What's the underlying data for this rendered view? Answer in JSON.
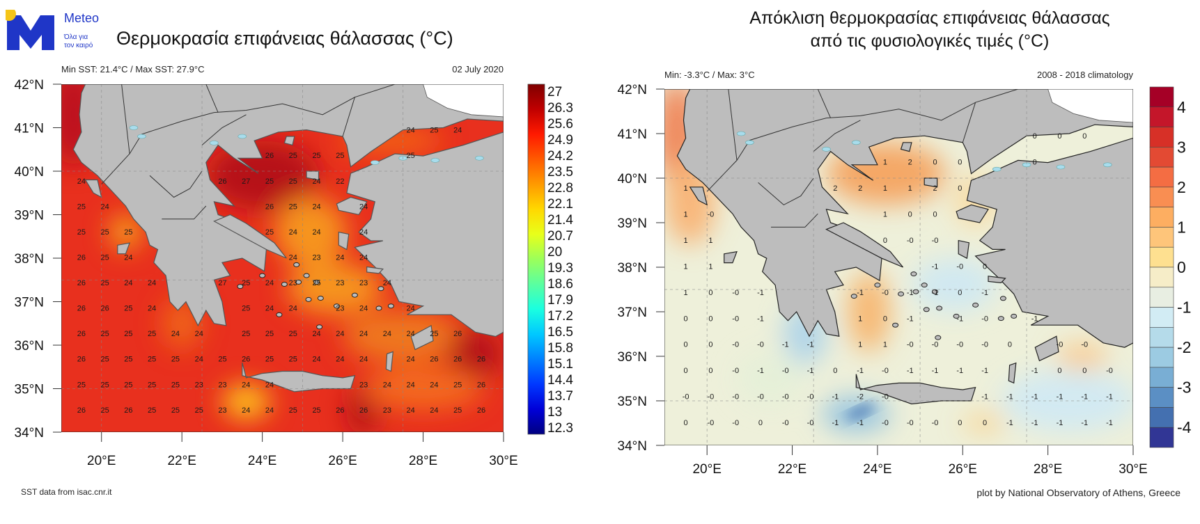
{
  "logo": {
    "brand": "Meteo",
    "tagline_1": "Όλα για",
    "tagline_2": "τον καιρό",
    "brand_color": "#1f36c7",
    "sun_color": "#f5c518"
  },
  "left_panel": {
    "title": "Θερμοκρασία επιφάνειας θάλασσας (°C)",
    "stats": "Min SST: 21.4°C / Max SST: 27.9°C",
    "date": "02 July 2020",
    "footer": "SST data from isac.cnr.it",
    "colorbar_labels": [
      "27",
      "26.3",
      "25.6",
      "24.9",
      "24.2",
      "23.5",
      "22.8",
      "22.1",
      "21.4",
      "20.7",
      "20",
      "19.3",
      "18.6",
      "17.9",
      "17.2",
      "16.5",
      "15.8",
      "15.1",
      "14.4",
      "13.7",
      "13",
      "12.3"
    ],
    "colorbar_colors": [
      "#7f0000",
      "#c00000",
      "#ff1a00",
      "#ff5a00",
      "#ff9a00",
      "#ffd800",
      "#e8ff1a",
      "#9cff5a",
      "#5affa0",
      "#1affe0",
      "#00c8ff",
      "#0080ff",
      "#0038ff",
      "#0000d8",
      "#000080"
    ]
  },
  "right_panel": {
    "title_line_1": "Απόκλιση θερμοκρασίας επιφάνειας θάλασσας",
    "title_line_2": "από τις φυσιολογικές τιμές (°C)",
    "stats": "Min: -3.3°C / Max: 3°C",
    "climatology": "2008 - 2018 climatology",
    "footer": "plot by National Observatory of Athens, Greece",
    "colorbar_labels": [
      "4",
      "3",
      "2",
      "1",
      "0",
      "-1",
      "-2",
      "-3",
      "-4"
    ],
    "colorbar_colors": [
      "#a50026",
      "#c4162a",
      "#d73027",
      "#e34a33",
      "#f46d43",
      "#f98e52",
      "#fdae61",
      "#fec57a",
      "#fee090",
      "#f6edc8",
      "#e8eee2",
      "#d2ecf4",
      "#b5dbea",
      "#9ccbe2",
      "#79aed4",
      "#5b8fc4",
      "#4470b0",
      "#313695"
    ]
  },
  "axes": {
    "lat_labels": [
      "42°N",
      "41°N",
      "40°N",
      "39°N",
      "38°N",
      "37°N",
      "36°N",
      "35°N",
      "34°N"
    ],
    "lat_values": [
      42,
      41,
      40,
      39,
      38,
      37,
      36,
      35,
      34
    ],
    "lon_labels": [
      "20°E",
      "22°E",
      "24°E",
      "26°E",
      "28°E",
      "30°E"
    ],
    "lon_values": [
      20,
      22,
      24,
      26,
      28,
      30
    ],
    "lon_range": [
      19,
      30
    ],
    "lat_range": [
      34,
      42
    ]
  },
  "label_grid": {
    "lon_start": 19.5,
    "lon_step": 0.585,
    "lat_start": 40.95,
    "lat_step": 0.585,
    "sst_rows": [
      [
        null,
        null,
        null,
        null,
        null,
        null,
        null,
        null,
        null,
        null,
        null,
        null,
        null,
        null,
        24,
        25,
        24,
        null
      ],
      [
        null,
        null,
        null,
        null,
        null,
        null,
        null,
        null,
        26,
        25,
        25,
        25,
        null,
        null,
        25,
        null,
        null,
        null
      ],
      [
        24,
        null,
        null,
        null,
        null,
        null,
        26,
        27,
        25,
        25,
        24,
        22,
        null,
        null,
        null,
        null,
        null,
        null
      ],
      [
        25,
        24,
        null,
        null,
        null,
        null,
        null,
        null,
        26,
        25,
        24,
        null,
        24,
        null,
        null,
        null,
        null,
        null
      ],
      [
        25,
        25,
        25,
        null,
        null,
        null,
        null,
        null,
        25,
        24,
        24,
        null,
        24,
        null,
        null,
        null,
        null,
        null
      ],
      [
        26,
        25,
        24,
        null,
        null,
        null,
        null,
        null,
        null,
        24,
        23,
        24,
        24,
        null,
        null,
        null,
        null,
        null
      ],
      [
        26,
        25,
        24,
        24,
        null,
        null,
        27,
        25,
        24,
        23,
        25,
        23,
        23,
        24,
        null,
        null,
        null,
        null
      ],
      [
        26,
        26,
        25,
        24,
        null,
        null,
        null,
        25,
        24,
        24,
        null,
        23,
        24,
        null,
        24,
        null,
        null,
        null
      ],
      [
        26,
        25,
        25,
        25,
        24,
        24,
        null,
        25,
        25,
        25,
        24,
        24,
        24,
        24,
        24,
        25,
        26,
        null
      ],
      [
        26,
        25,
        25,
        25,
        25,
        24,
        25,
        26,
        25,
        25,
        24,
        24,
        24,
        null,
        24,
        26,
        26,
        26
      ],
      [
        25,
        25,
        25,
        25,
        25,
        23,
        23,
        24,
        24,
        null,
        null,
        null,
        23,
        24,
        24,
        24,
        25,
        26
      ],
      [
        26,
        25,
        26,
        25,
        25,
        25,
        23,
        24,
        24,
        25,
        25,
        26,
        26,
        23,
        24,
        24,
        25,
        26
      ]
    ],
    "anomaly_rows": [
      [
        null,
        null,
        null,
        null,
        null,
        null,
        null,
        null,
        null,
        null,
        null,
        null,
        null,
        null,
        "0",
        "0",
        "0",
        null
      ],
      [
        null,
        null,
        null,
        null,
        null,
        null,
        null,
        null,
        "1",
        "2",
        "0",
        "0",
        null,
        null,
        "0",
        null,
        null,
        null
      ],
      [
        "1",
        null,
        null,
        null,
        null,
        null,
        "2",
        "2",
        "1",
        "1",
        "2",
        "0",
        null,
        null,
        null,
        null,
        null,
        null
      ],
      [
        "1",
        "-0",
        null,
        null,
        null,
        null,
        null,
        null,
        "1",
        "0",
        "0",
        null,
        null,
        null,
        null,
        null,
        null,
        null
      ],
      [
        "1",
        "1",
        null,
        null,
        null,
        null,
        null,
        null,
        "0",
        "-0",
        "-0",
        null,
        null,
        null,
        null,
        null,
        null,
        null
      ],
      [
        "1",
        "1",
        null,
        null,
        null,
        null,
        null,
        null,
        null,
        null,
        "-1",
        "-0",
        "0",
        null,
        null,
        null,
        null,
        null
      ],
      [
        "1",
        "0",
        "-0",
        "-1",
        null,
        null,
        null,
        "-1",
        "-0",
        "-1",
        "-1",
        "0",
        "-1",
        null,
        null,
        null,
        null,
        null
      ],
      [
        "0",
        "0",
        "-0",
        "-1",
        null,
        null,
        null,
        "1",
        "0",
        "-1",
        null,
        "-1",
        "-0",
        null,
        "-1",
        null,
        null,
        null
      ],
      [
        "0",
        "0",
        "-0",
        "-0",
        "-1",
        "-1",
        null,
        "1",
        "1",
        "-0",
        "-0",
        "-0",
        "-0",
        "0",
        null,
        "-0",
        "-0",
        null
      ],
      [
        "0",
        "0",
        "-0",
        "-1",
        "-0",
        "-1",
        "0",
        "-1",
        "-0",
        "-1",
        "-1",
        "-1",
        "-1",
        null,
        "-1",
        "0",
        "0",
        "-0"
      ],
      [
        "-0",
        "-0",
        "-0",
        "-0",
        "-0",
        "-0",
        "-1",
        "-2",
        "-0",
        null,
        null,
        null,
        "-1",
        "-1",
        "-1",
        "-1",
        "-1",
        "-1"
      ],
      [
        "0",
        "-0",
        "-0",
        "0",
        "-0",
        "-0",
        "-1",
        "-1",
        "-0",
        "-0",
        "-0",
        "0",
        "0",
        "-1",
        "-1",
        "-1",
        "-1",
        "-1"
      ]
    ]
  }
}
